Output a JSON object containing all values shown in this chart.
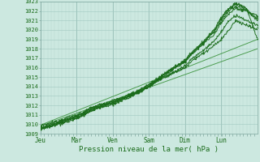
{
  "xlabel": "Pression niveau de la mer( hPa )",
  "ylim": [
    1009,
    1023
  ],
  "yticks": [
    1009,
    1010,
    1011,
    1012,
    1013,
    1014,
    1015,
    1016,
    1017,
    1018,
    1019,
    1020,
    1021,
    1022,
    1023
  ],
  "day_labels": [
    "Jeu",
    "Mar",
    "Ven",
    "Sam",
    "Dim",
    "Lun"
  ],
  "day_positions": [
    0,
    0.167,
    0.333,
    0.5,
    0.667,
    0.833
  ],
  "xlim": [
    0,
    1.0
  ],
  "bg_color": "#cce8e0",
  "grid_color_minor": "#b8d8d0",
  "grid_color_major": "#a0c8c0",
  "line_color": "#1a6b1a",
  "line_color_thin": "#2d8b2d",
  "smooth_lines": [
    {
      "x": [
        0.0,
        1.0
      ],
      "y": [
        1009.8,
        1018.0
      ]
    },
    {
      "x": [
        0.0,
        1.0
      ],
      "y": [
        1009.9,
        1019.0
      ]
    }
  ],
  "noisy_lines": [
    {
      "x": [
        0.0,
        0.05,
        0.1,
        0.167,
        0.2,
        0.25,
        0.333,
        0.4,
        0.45,
        0.5,
        0.55,
        0.6,
        0.667,
        0.7,
        0.75,
        0.8,
        0.833,
        0.87,
        0.9,
        0.95,
        1.0
      ],
      "y": [
        1009.8,
        1010.1,
        1010.5,
        1011.0,
        1011.3,
        1011.9,
        1012.5,
        1013.0,
        1013.5,
        1014.0,
        1014.8,
        1015.3,
        1016.0,
        1016.8,
        1017.5,
        1018.3,
        1019.0,
        1020.0,
        1021.0,
        1020.5,
        1020.0
      ]
    },
    {
      "x": [
        0.0,
        0.05,
        0.1,
        0.167,
        0.2,
        0.25,
        0.333,
        0.4,
        0.45,
        0.5,
        0.55,
        0.6,
        0.667,
        0.7,
        0.75,
        0.8,
        0.833,
        0.87,
        0.9,
        0.95,
        1.0
      ],
      "y": [
        1009.7,
        1010.0,
        1010.4,
        1010.9,
        1011.2,
        1011.8,
        1012.3,
        1012.9,
        1013.4,
        1014.0,
        1014.7,
        1015.3,
        1016.2,
        1017.0,
        1017.8,
        1018.8,
        1019.8,
        1021.0,
        1021.5,
        1021.0,
        1020.5
      ]
    },
    {
      "x": [
        0.0,
        0.05,
        0.1,
        0.167,
        0.2,
        0.25,
        0.333,
        0.4,
        0.45,
        0.5,
        0.55,
        0.6,
        0.667,
        0.7,
        0.75,
        0.8,
        0.833,
        0.87,
        0.9,
        0.95,
        1.0
      ],
      "y": [
        1009.6,
        1009.9,
        1010.3,
        1010.8,
        1011.2,
        1011.8,
        1012.4,
        1013.0,
        1013.5,
        1014.2,
        1015.0,
        1015.8,
        1016.7,
        1017.5,
        1018.5,
        1019.5,
        1020.8,
        1021.8,
        1022.3,
        1022.0,
        1021.5
      ]
    },
    {
      "x": [
        0.0,
        0.05,
        0.1,
        0.167,
        0.2,
        0.25,
        0.333,
        0.4,
        0.45,
        0.5,
        0.55,
        0.6,
        0.667,
        0.7,
        0.75,
        0.8,
        0.833,
        0.87,
        0.9,
        0.95,
        1.0
      ],
      "y": [
        1009.5,
        1009.8,
        1010.2,
        1010.7,
        1011.1,
        1011.7,
        1012.3,
        1012.9,
        1013.5,
        1014.2,
        1015.0,
        1015.8,
        1016.8,
        1017.7,
        1018.7,
        1019.8,
        1021.0,
        1022.0,
        1022.5,
        1022.0,
        1021.2
      ]
    },
    {
      "x": [
        0.0,
        0.05,
        0.1,
        0.167,
        0.2,
        0.25,
        0.333,
        0.4,
        0.45,
        0.5,
        0.55,
        0.6,
        0.667,
        0.7,
        0.75,
        0.8,
        0.833,
        0.87,
        0.9,
        0.95,
        1.0
      ],
      "y": [
        1009.5,
        1009.8,
        1010.2,
        1010.7,
        1011.0,
        1011.6,
        1012.2,
        1012.8,
        1013.3,
        1014.0,
        1014.9,
        1015.7,
        1016.7,
        1017.6,
        1018.7,
        1020.0,
        1021.3,
        1022.3,
        1022.8,
        1022.2,
        1021.0
      ]
    },
    {
      "x": [
        0.0,
        0.05,
        0.1,
        0.167,
        0.2,
        0.25,
        0.333,
        0.4,
        0.45,
        0.5,
        0.55,
        0.6,
        0.667,
        0.7,
        0.75,
        0.8,
        0.833,
        0.87,
        0.9,
        0.95,
        1.0
      ],
      "y": [
        1009.5,
        1009.8,
        1010.1,
        1010.6,
        1011.0,
        1011.6,
        1012.1,
        1012.7,
        1013.3,
        1014.0,
        1014.8,
        1015.6,
        1016.6,
        1017.5,
        1018.6,
        1019.8,
        1021.2,
        1022.2,
        1022.8,
        1022.3,
        1019.0
      ]
    }
  ]
}
